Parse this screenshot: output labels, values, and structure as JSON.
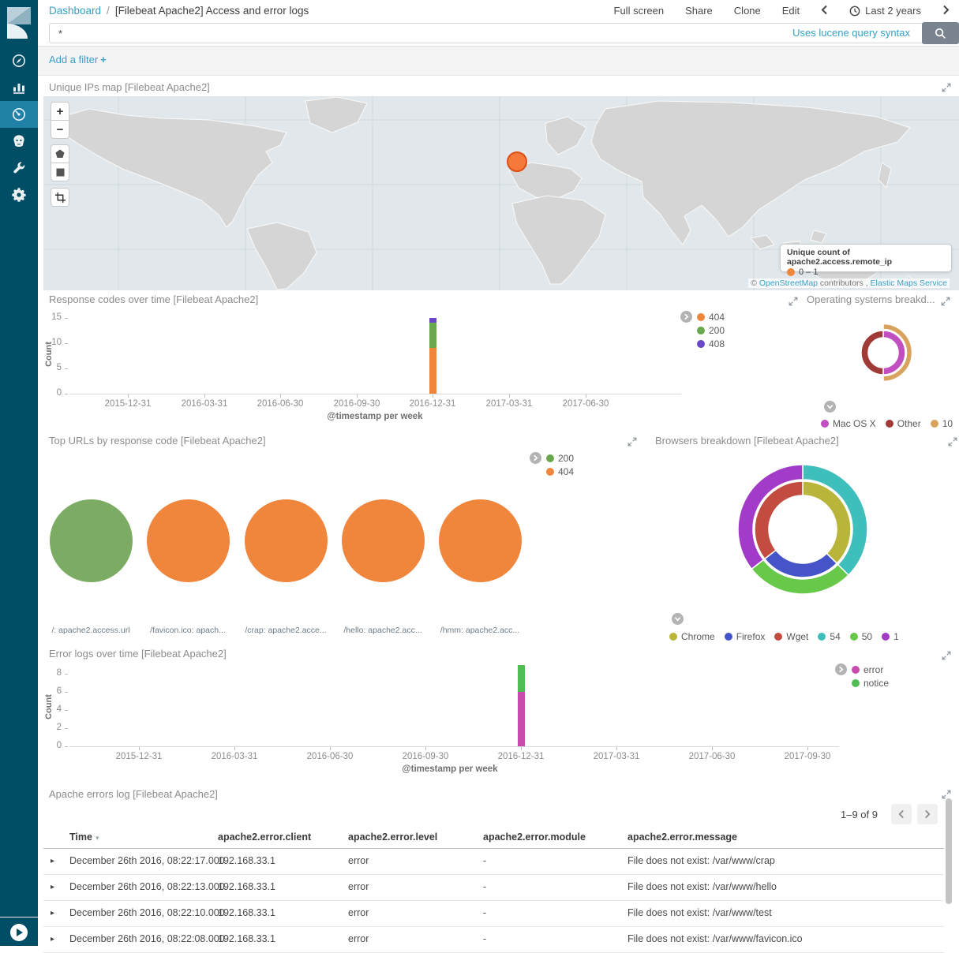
{
  "header": {
    "breadcrumb": "Dashboard",
    "separator": "/",
    "title": "[Filebeat Apache2] Access and error logs",
    "actions": [
      "Full screen",
      "Share",
      "Clone",
      "Edit"
    ],
    "time_range": "Last 2 years"
  },
  "query": {
    "value": "*",
    "hint": "Uses lucene query syntax"
  },
  "filter_bar": {
    "label": "Add a filter",
    "plus": "+"
  },
  "sidebar": {
    "items": [
      {
        "name": "discover",
        "icon": "compass",
        "active": false
      },
      {
        "name": "visualize",
        "icon": "barchart",
        "active": false
      },
      {
        "name": "dashboard",
        "icon": "gauge",
        "active": true
      },
      {
        "name": "timelion",
        "icon": "timelion",
        "active": false
      },
      {
        "name": "dev-tools",
        "icon": "wrench",
        "active": false
      },
      {
        "name": "management",
        "icon": "gear",
        "active": false
      }
    ]
  },
  "map_panel": {
    "title": "Unique IPs map [Filebeat Apache2]",
    "legend_title": "Unique count of apache2.access.remote_ip",
    "legend_item": "0 – 1",
    "marker_color": "#F6793B",
    "attribution": {
      "prefix": "© ",
      "link1": "OpenStreetMap",
      "middle": " contributors , ",
      "link2": "Elastic Maps Service"
    },
    "controls": {
      "zoom_in": "+",
      "zoom_out": "−"
    }
  },
  "chart_data": [
    {
      "id": "response_codes",
      "type": "bar",
      "title": "Response codes over time [Filebeat Apache2]",
      "xlabel": "@timestamp per week",
      "ylabel": "Count",
      "yticks": [
        0,
        5,
        10,
        15
      ],
      "x_ticks": [
        "2015-12-31",
        "2016-03-31",
        "2016-06-30",
        "2016-09-30",
        "2016-12-31",
        "2017-03-31",
        "2017-06-30"
      ],
      "bar_at": "2016-12-31",
      "series": [
        {
          "name": "404",
          "color": "#F0853C",
          "value": 9
        },
        {
          "name": "200",
          "color": "#69A84C",
          "value": 5
        },
        {
          "name": "408",
          "color": "#6A47C7",
          "value": 1
        }
      ]
    },
    {
      "id": "os_breakdown",
      "type": "donut",
      "title": "Operating systems breakd...",
      "inner": [
        {
          "label": "Mac OS X",
          "color": "#C04FC0",
          "start": 0,
          "end": 0.5
        },
        {
          "label": "Other",
          "color": "#A03A36",
          "start": 0.5,
          "end": 1
        }
      ],
      "outer": [
        {
          "label": "10",
          "color": "#D8A45D",
          "start": 0,
          "end": 0.5
        }
      ],
      "legend": [
        {
          "label": "Mac OS X",
          "color": "#C04FC0"
        },
        {
          "label": "Other",
          "color": "#A03A36"
        },
        {
          "label": "10",
          "color": "#D8A45D"
        }
      ]
    },
    {
      "id": "top_urls",
      "type": "pie",
      "title": "Top URLs by response code [Filebeat Apache2]",
      "legend": [
        {
          "label": "200",
          "color": "#69A84C"
        },
        {
          "label": "404",
          "color": "#F0853C"
        }
      ],
      "pies": [
        {
          "label": "/: apache2.access.url",
          "slice": "200",
          "color": "#7CAB63",
          "fraction": 1
        },
        {
          "label": "/favicon.ico: apach...",
          "slice": "404",
          "color": "#F0853C",
          "fraction": 1
        },
        {
          "label": "/crap: apache2.acce...",
          "slice": "404",
          "color": "#F0853C",
          "fraction": 1
        },
        {
          "label": "/hello: apache2.acc...",
          "slice": "404",
          "color": "#F0853C",
          "fraction": 1
        },
        {
          "label": "/hmm: apache2.acc...",
          "slice": "404",
          "color": "#F0853C",
          "fraction": 1
        }
      ]
    },
    {
      "id": "browsers",
      "type": "donut",
      "title": "Browsers breakdown [Filebeat Apache2]",
      "inner": [
        {
          "label": "Chrome",
          "color": "#B9B53B",
          "start": 0,
          "end": 0.375
        },
        {
          "label": "Firefox",
          "color": "#4555C7",
          "start": 0.375,
          "end": 0.645
        },
        {
          "label": "Wget",
          "color": "#C14C3F",
          "start": 0.645,
          "end": 1
        }
      ],
      "outer": [
        {
          "label": "54",
          "color": "#3FBFBB",
          "start": 0,
          "end": 0.375
        },
        {
          "label": "50",
          "color": "#67C84A",
          "start": 0.375,
          "end": 0.645
        },
        {
          "label": "1",
          "color": "#A13BC8",
          "start": 0.645,
          "end": 1
        }
      ],
      "legend": [
        {
          "label": "Chrome",
          "color": "#B9B53B"
        },
        {
          "label": "Firefox",
          "color": "#4555C7"
        },
        {
          "label": "Wget",
          "color": "#C14C3F"
        },
        {
          "label": "54",
          "color": "#3FBFBB"
        },
        {
          "label": "50",
          "color": "#67C84A"
        },
        {
          "label": "1",
          "color": "#A13BC8"
        }
      ]
    },
    {
      "id": "error_logs",
      "type": "bar",
      "title": "Error logs over time [Filebeat Apache2]",
      "xlabel": "@timestamp per week",
      "ylabel": "Count",
      "yticks": [
        0,
        2,
        4,
        6,
        8
      ],
      "x_ticks": [
        "2015-12-31",
        "2016-03-31",
        "2016-06-30",
        "2016-09-30",
        "2016-12-31",
        "2017-03-31",
        "2017-06-30",
        "2017-09-30"
      ],
      "bar_at": "2016-12-31",
      "series": [
        {
          "name": "error",
          "color": "#C94BB0",
          "value": 6
        },
        {
          "name": "notice",
          "color": "#4FBE52",
          "value": 3
        }
      ]
    }
  ],
  "table_panel": {
    "title": "Apache errors log [Filebeat Apache2]",
    "pagination": "1–9 of 9",
    "columns": [
      "Time",
      "apache2.error.client",
      "apache2.error.level",
      "apache2.error.module",
      "apache2.error.message"
    ],
    "rows": [
      [
        "December 26th 2016, 08:22:17.000",
        "192.168.33.1",
        "error",
        "-",
        "File does not exist: /var/www/crap"
      ],
      [
        "December 26th 2016, 08:22:13.000",
        "192.168.33.1",
        "error",
        "-",
        "File does not exist: /var/www/hello"
      ],
      [
        "December 26th 2016, 08:22:10.000",
        "192.168.33.1",
        "error",
        "-",
        "File does not exist: /var/www/test"
      ],
      [
        "December 26th 2016, 08:22:08.000",
        "192.168.33.1",
        "error",
        "-",
        "File does not exist: /var/www/favicon.ico"
      ]
    ]
  }
}
